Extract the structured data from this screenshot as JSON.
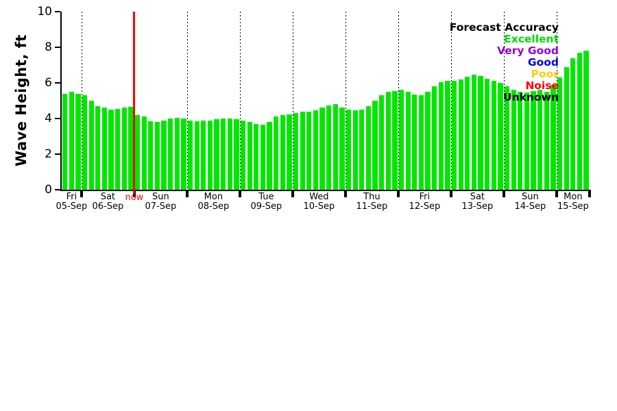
{
  "chart_data": {
    "type": "bar",
    "title": "",
    "ylabel": "Wave Height, ft",
    "xlabel": "",
    "ylim": [
      0,
      10
    ],
    "yticks": [
      "0",
      "2",
      "4",
      "6",
      "8",
      "10"
    ],
    "grid": "vertical-dotted-day-boundaries",
    "bar_color": "#00e800",
    "now_marker": {
      "label": "now",
      "color": "#ff0000",
      "after_day_index": 1
    },
    "days": [
      {
        "day": "Fri",
        "date": "05-Sep",
        "values": [
          5.4,
          5.5,
          5.4
        ]
      },
      {
        "day": "Sat",
        "date": "06-Sep",
        "values": [
          5.3,
          5.0,
          4.7,
          4.6,
          4.5,
          4.55,
          4.6,
          4.65
        ]
      },
      {
        "day": "Sun",
        "date": "07-Sep",
        "values": [
          4.2,
          4.1,
          3.85,
          3.8,
          3.9,
          4.0,
          4.05,
          4.0
        ]
      },
      {
        "day": "Mon",
        "date": "08-Sep",
        "values": [
          3.9,
          3.85,
          3.9,
          3.9,
          3.95,
          4.0,
          4.0,
          3.95
        ]
      },
      {
        "day": "Tue",
        "date": "09-Sep",
        "values": [
          3.9,
          3.8,
          3.7,
          3.65,
          3.8,
          4.1,
          4.2,
          4.25
        ]
      },
      {
        "day": "Wed",
        "date": "10-Sep",
        "values": [
          4.3,
          4.4,
          4.4,
          4.45,
          4.6,
          4.75,
          4.8,
          4.6
        ]
      },
      {
        "day": "Thu",
        "date": "11-Sep",
        "values": [
          4.5,
          4.45,
          4.5,
          4.7,
          5.0,
          5.3,
          5.5,
          5.55
        ]
      },
      {
        "day": "Fri",
        "date": "12-Sep",
        "values": [
          5.6,
          5.5,
          5.35,
          5.3,
          5.5,
          5.8,
          6.05,
          6.1
        ]
      },
      {
        "day": "Sat",
        "date": "13-Sep",
        "values": [
          6.1,
          6.2,
          6.35,
          6.45,
          6.4,
          6.25,
          6.1,
          6.0
        ]
      },
      {
        "day": "Sun",
        "date": "14-Sep",
        "values": [
          5.8,
          5.6,
          5.5,
          5.45,
          5.55,
          5.6,
          5.5,
          5.9
        ]
      },
      {
        "day": "Mon",
        "date": "15-Sep",
        "values": [
          6.3,
          6.9,
          7.4,
          7.7,
          7.8
        ]
      }
    ],
    "legend": {
      "position": "top-right",
      "title": "Forecast Accuracy",
      "title_color": "#000000",
      "entries": [
        {
          "label": "Excellent",
          "color": "#00dd00"
        },
        {
          "label": "Very Good",
          "color": "#9400d3"
        },
        {
          "label": "Good",
          "color": "#0000ee"
        },
        {
          "label": "Poor",
          "color": "#ffcc00"
        },
        {
          "label": "Noise",
          "color": "#ff0000"
        },
        {
          "label": "Unknown",
          "color": "#000000"
        }
      ]
    }
  }
}
